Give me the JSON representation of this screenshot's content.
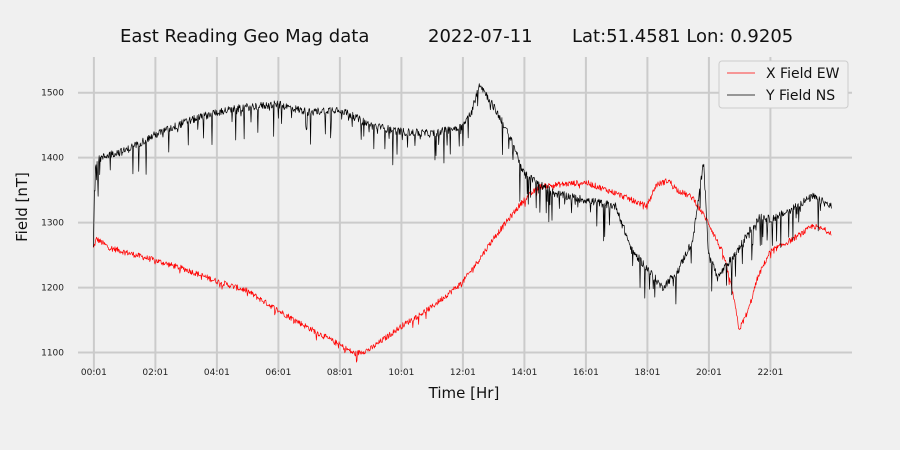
{
  "chart_data": {
    "type": "line",
    "title": "East Reading Geo Mag data",
    "date": "2022-07-11",
    "location": "Lat:51.4581  Lon: 0.9205",
    "xlabel": "Time  [Hr]",
    "ylabel": "Field  [nT]",
    "xlim": [
      -0.5,
      24.67
    ],
    "ylim": [
      1070,
      1555
    ],
    "x_ticks": [
      0.0167,
      2.0167,
      4.0167,
      6.0167,
      8.0167,
      10.0167,
      12.0167,
      14.0167,
      16.0167,
      18.0167,
      20.0167,
      22.0167
    ],
    "x_tick_labels": [
      "00:01",
      "02:01",
      "04:01",
      "06:01",
      "08:01",
      "10:01",
      "12:01",
      "14:01",
      "16:01",
      "18:01",
      "20:01",
      "22:01"
    ],
    "y_ticks": [
      1100,
      1200,
      1300,
      1400,
      1500
    ],
    "grid": true,
    "legend_position": "top-right",
    "series": [
      {
        "name": "X Field EW",
        "color": "#ff0000",
        "noise": 9,
        "x": [
          0.0,
          0.1,
          0.5,
          1.0,
          2.0,
          3.0,
          4.0,
          5.0,
          6.0,
          7.0,
          8.0,
          8.5,
          9.0,
          10.0,
          11.0,
          12.0,
          12.5,
          13.0,
          13.5,
          14.0,
          14.5,
          15.0,
          16.0,
          17.0,
          18.0,
          18.3,
          18.7,
          19.0,
          19.5,
          20.0,
          20.5,
          20.8,
          21.0,
          21.3,
          21.6,
          22.0,
          22.5,
          23.0,
          23.4,
          24.0
        ],
        "values": [
          1260,
          1275,
          1262,
          1255,
          1242,
          1228,
          1210,
          1195,
          1165,
          1138,
          1112,
          1098,
          1105,
          1140,
          1170,
          1208,
          1240,
          1275,
          1305,
          1335,
          1355,
          1358,
          1362,
          1345,
          1325,
          1358,
          1365,
          1350,
          1338,
          1300,
          1250,
          1190,
          1135,
          1165,
          1215,
          1255,
          1268,
          1282,
          1295,
          1285
        ]
      },
      {
        "name": "Y Field NS",
        "color": "#000000",
        "noise": 12,
        "x": [
          0.0,
          0.05,
          0.2,
          0.5,
          1.0,
          2.0,
          3.0,
          4.0,
          5.0,
          6.0,
          7.0,
          8.0,
          9.0,
          10.0,
          11.0,
          12.0,
          12.3,
          12.55,
          13.0,
          13.3,
          13.7,
          14.0,
          14.5,
          15.0,
          16.0,
          17.0,
          17.5,
          18.0,
          18.5,
          19.0,
          19.5,
          19.85,
          20.0,
          20.3,
          20.6,
          21.0,
          21.3,
          21.7,
          22.0,
          22.5,
          23.0,
          23.4,
          24.0
        ],
        "values": [
          1260,
          1390,
          1398,
          1405,
          1410,
          1435,
          1455,
          1470,
          1478,
          1482,
          1470,
          1475,
          1450,
          1440,
          1437,
          1448,
          1470,
          1515,
          1480,
          1455,
          1415,
          1375,
          1360,
          1345,
          1335,
          1325,
          1258,
          1230,
          1200,
          1225,
          1275,
          1395,
          1255,
          1215,
          1235,
          1260,
          1285,
          1310,
          1305,
          1315,
          1330,
          1340,
          1325
        ]
      }
    ]
  }
}
